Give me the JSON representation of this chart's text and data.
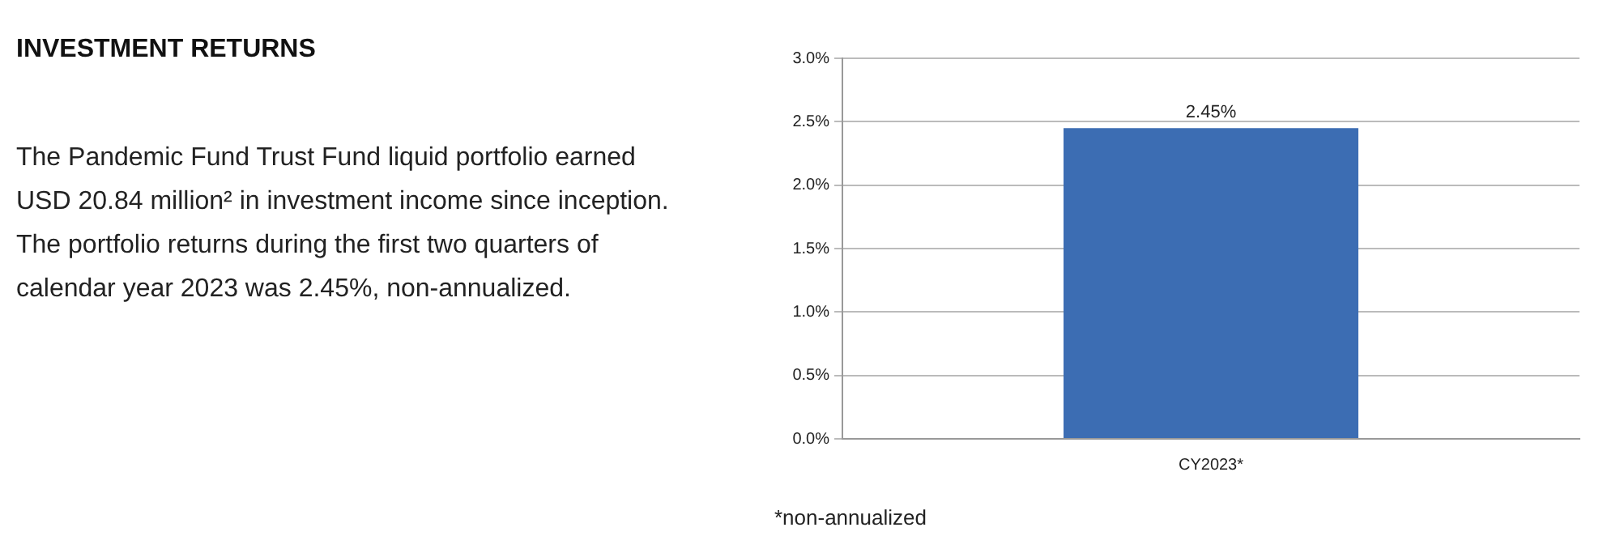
{
  "chart_data": {
    "type": "bar",
    "title": "INVESTMENT RETURNS",
    "annotations": [
      "The Pandemic Fund Trust Fund liquid portfolio earned USD 20.84 million² in investment income since inception. The portfolio returns during the first two quarters of calendar year 2023 was 2.45%, non-annualized.",
      "*non-annualized"
    ],
    "categories": [
      "CY2023*"
    ],
    "values": [
      2.45
    ],
    "value_labels": [
      "2.45%"
    ],
    "color": "#3c6db3",
    "ylim": [
      0,
      3
    ],
    "yticks": [
      {
        "value": 0,
        "label": "0.0%"
      },
      {
        "value": 0.5,
        "label": "0.5%"
      },
      {
        "value": 1,
        "label": "1.0%"
      },
      {
        "value": 1.5,
        "label": "1.5%"
      },
      {
        "value": 2,
        "label": "2.0%"
      },
      {
        "value": 2.5,
        "label": "2.5%"
      },
      {
        "value": 3,
        "label": "3.0%"
      }
    ],
    "grid": "y",
    "legend": false
  }
}
